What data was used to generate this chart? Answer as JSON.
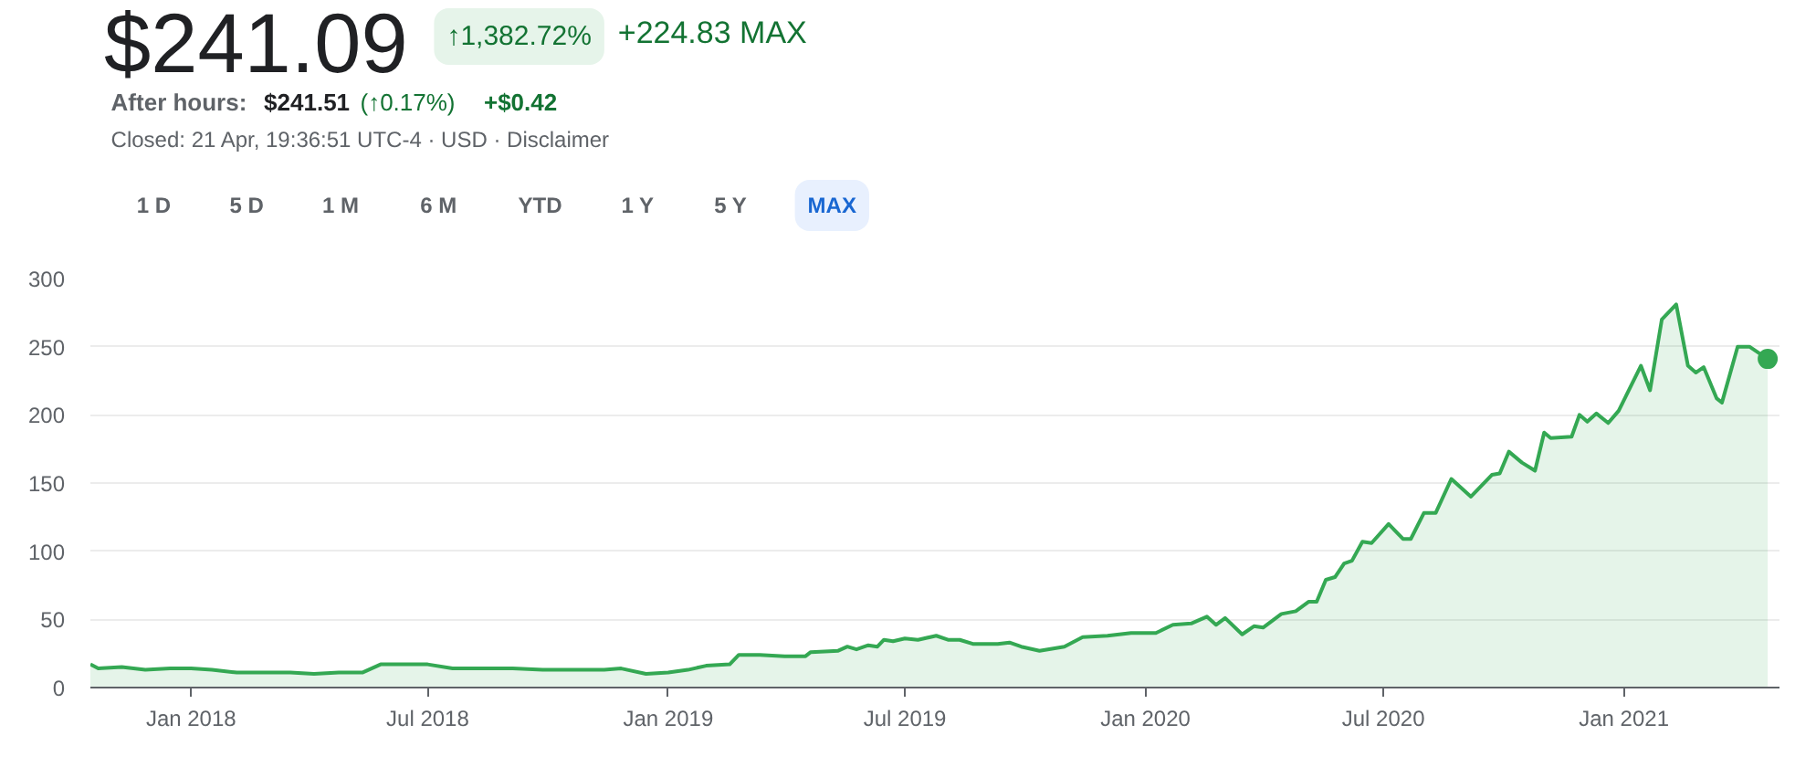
{
  "chart_data": {
    "type": "area",
    "title": "$241.09",
    "annotations": [
      "↑1,382.72%",
      "+224.83 MAX",
      "After hours:",
      "$241.51",
      "(↑0.17%)",
      "+$0.42",
      "Closed: 21 Apr, 19:36:51 UTC-4 · USD · Disclaimer",
      "1 D",
      "5 D",
      "1 M",
      "6 M",
      "YTD",
      "1 Y",
      "5 Y",
      "MAX"
    ],
    "xlim": [
      "2017-10-16",
      "2021-04-30"
    ],
    "xticks": [
      {
        "value": "2018-01-01",
        "label": "Jan 2018"
      },
      {
        "value": "2018-07-01",
        "label": "Jul 2018"
      },
      {
        "value": "2019-01-01",
        "label": "Jan 2019"
      },
      {
        "value": "2019-07-01",
        "label": "Jul 2019"
      },
      {
        "value": "2020-01-01",
        "label": "Jan 2020"
      },
      {
        "value": "2020-07-01",
        "label": "Jul 2020"
      },
      {
        "value": "2021-01-01",
        "label": "Jan 2021"
      }
    ],
    "ylim": [
      0,
      300
    ],
    "yticks": [
      0,
      50,
      100,
      150,
      200,
      250,
      300
    ],
    "grid": "y",
    "series": [
      {
        "color": "#34a853",
        "x": [
          "2017-10-16",
          "2017-10-22",
          "2017-11-09",
          "2017-11-27",
          "2017-12-16",
          "2018-01-01",
          "2018-01-17",
          "2018-02-05",
          "2018-02-23",
          "2018-03-18",
          "2018-04-05",
          "2018-04-24",
          "2018-05-12",
          "2018-05-26",
          "2018-07-01",
          "2018-07-20",
          "2018-08-12",
          "2018-09-04",
          "2018-09-27",
          "2018-10-21",
          "2018-11-13",
          "2018-11-26",
          "2018-12-15",
          "2019-01-01",
          "2019-01-16",
          "2019-01-30",
          "2019-02-17",
          "2019-02-24",
          "2019-03-12",
          "2019-03-31",
          "2019-04-16",
          "2019-04-20",
          "2019-05-11",
          "2019-05-18",
          "2019-05-25",
          "2019-06-03",
          "2019-06-10",
          "2019-06-15",
          "2019-06-22",
          "2019-07-01",
          "2019-07-11",
          "2019-07-25",
          "2019-08-03",
          "2019-08-12",
          "2019-08-22",
          "2019-09-10",
          "2019-09-19",
          "2019-09-28",
          "2019-10-12",
          "2019-10-31",
          "2019-11-14",
          "2019-12-03",
          "2019-12-21",
          "2020-01-09",
          "2020-01-22",
          "2020-02-05",
          "2020-02-17",
          "2020-02-24",
          "2020-03-02",
          "2020-03-15",
          "2020-03-24",
          "2020-03-31",
          "2020-04-14",
          "2020-04-25",
          "2020-05-05",
          "2020-05-11",
          "2020-05-18",
          "2020-05-25",
          "2020-06-01",
          "2020-06-07",
          "2020-06-15",
          "2020-06-22",
          "2020-07-05",
          "2020-07-16",
          "2020-07-22",
          "2020-08-01",
          "2020-08-10",
          "2020-08-22",
          "2020-09-06",
          "2020-09-22",
          "2020-09-28",
          "2020-10-05",
          "2020-10-15",
          "2020-10-25",
          "2020-11-01",
          "2020-11-06",
          "2020-11-22",
          "2020-11-28",
          "2020-12-04",
          "2020-12-11",
          "2020-12-20",
          "2020-12-28",
          "2021-01-14",
          "2021-01-21",
          "2021-01-30",
          "2021-02-10",
          "2021-02-19",
          "2021-02-25",
          "2021-03-03",
          "2021-03-13",
          "2021-03-17",
          "2021-03-29",
          "2021-04-07",
          "2021-04-21"
        ],
        "values": [
          17,
          14,
          15,
          13,
          14,
          14,
          13,
          11,
          11,
          11,
          10,
          11,
          11,
          17,
          17,
          14,
          14,
          14,
          13,
          13,
          13,
          14,
          10,
          11,
          13,
          16,
          17,
          24,
          24,
          23,
          23,
          26,
          27,
          30,
          28,
          31,
          30,
          35,
          34,
          36,
          35,
          38,
          35,
          35,
          32,
          32,
          33,
          30,
          27,
          30,
          37,
          38,
          40,
          40,
          46,
          47,
          52,
          46,
          51,
          39,
          45,
          44,
          54,
          56,
          63,
          63,
          79,
          81,
          91,
          93,
          107,
          106,
          120,
          109,
          109,
          128,
          128,
          153,
          140,
          156,
          157,
          173,
          165,
          159,
          187,
          183,
          184,
          200,
          195,
          201,
          194,
          203,
          236,
          218,
          270,
          281,
          236,
          231,
          235,
          212,
          209,
          250,
          250,
          241
        ]
      },
      {
        "type": "scatter",
        "color": "#34a853",
        "x": [
          "2021-04-21"
        ],
        "values": [
          241
        ]
      }
    ]
  }
}
